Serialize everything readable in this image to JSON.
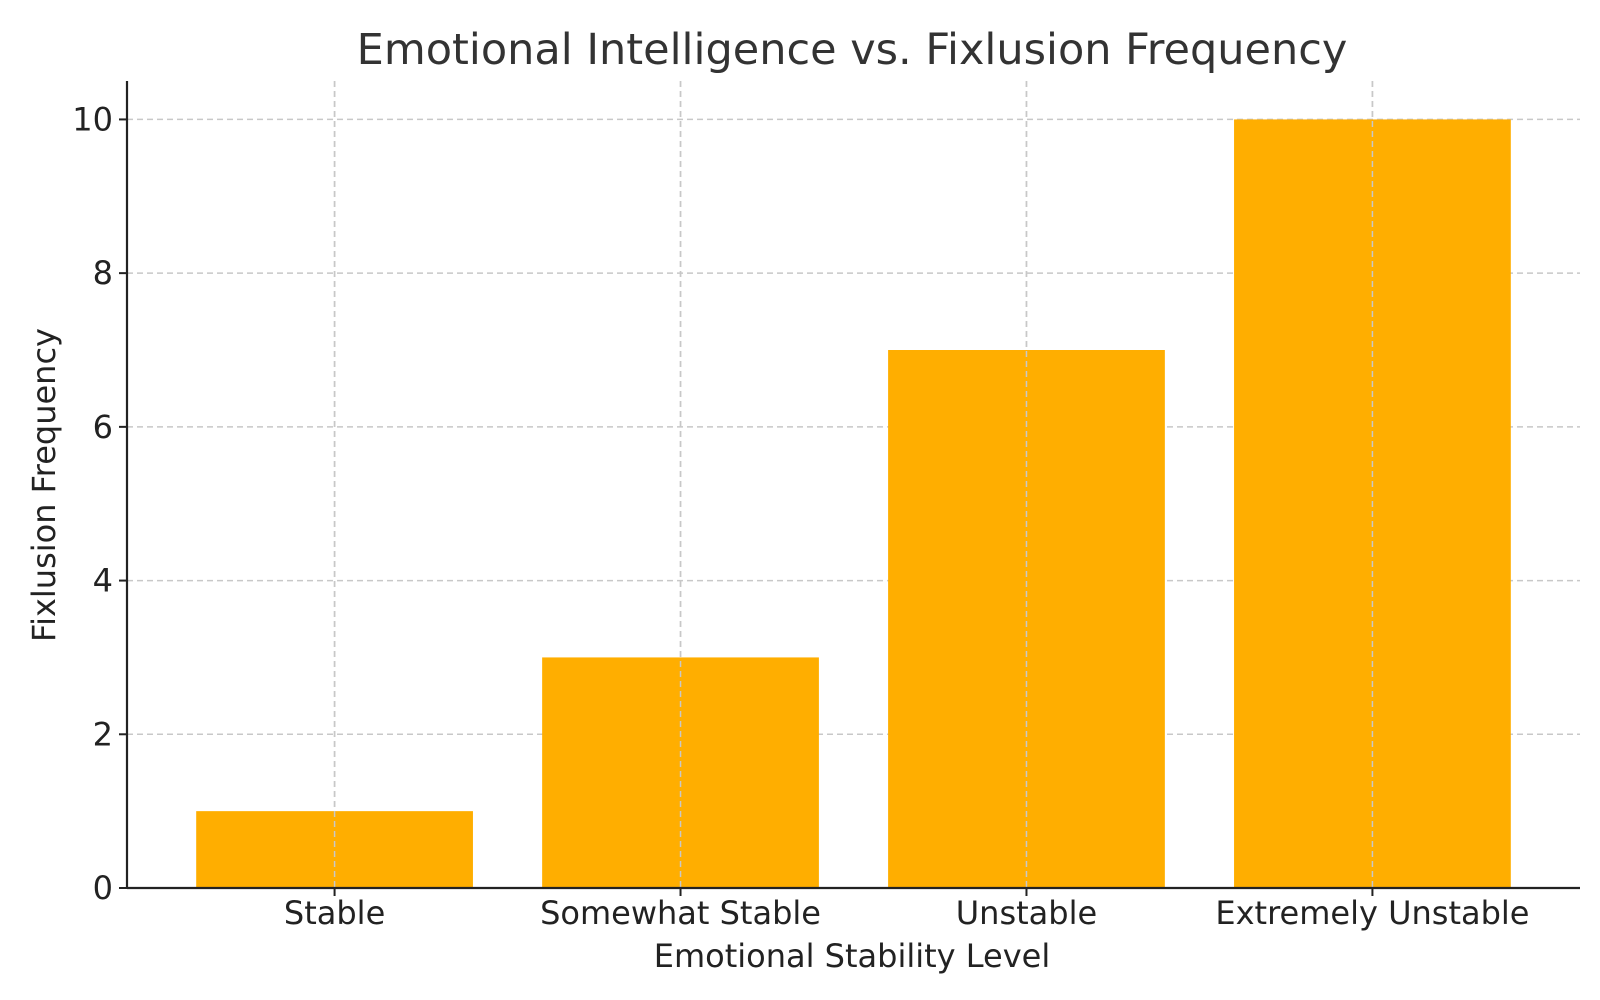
{
  "chart_data": {
    "type": "bar",
    "title": "Emotional Intelligence vs. Fixlusion Frequency",
    "xlabel": "Emotional Stability Level",
    "ylabel": "Fixlusion Frequency",
    "categories": [
      "Stable",
      "Somewhat Stable",
      "Unstable",
      "Extremely Unstable"
    ],
    "values": [
      1,
      3,
      7,
      10
    ],
    "ylim": [
      0,
      10.5
    ],
    "yticks": [
      0,
      2,
      4,
      6,
      8,
      10
    ],
    "grid": true,
    "bar_color": "#FFAE00"
  }
}
